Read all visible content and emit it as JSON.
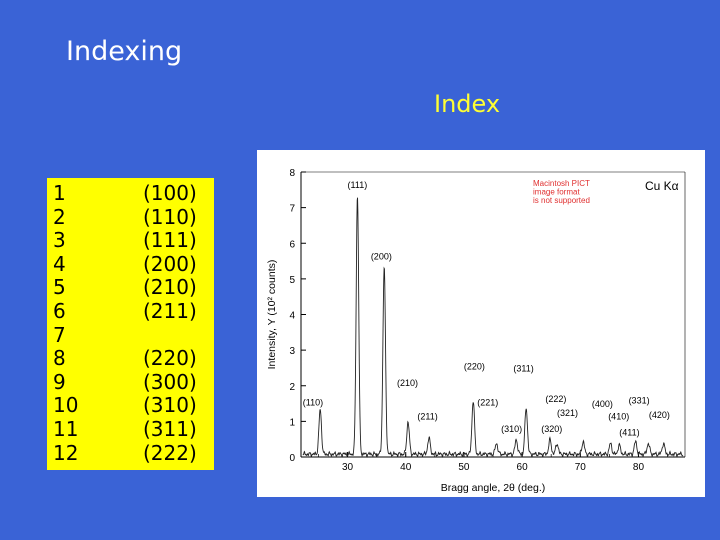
{
  "slide": {
    "title": "Indexing",
    "subtitle": "Index"
  },
  "index_table": {
    "rows": [
      {
        "n": "1",
        "hkl": "(100)"
      },
      {
        "n": "2",
        "hkl": "(110)"
      },
      {
        "n": "3",
        "hkl": "(111)"
      },
      {
        "n": "4",
        "hkl": "(200)"
      },
      {
        "n": "5",
        "hkl": "(210)"
      },
      {
        "n": "6",
        "hkl": "(211)"
      },
      {
        "n": "7",
        "hkl": ""
      },
      {
        "n": "8",
        "hkl": "(220)"
      },
      {
        "n": "9",
        "hkl": "(300)"
      },
      {
        "n": "10",
        "hkl": "(310)"
      },
      {
        "n": "11",
        "hkl": "(311)"
      },
      {
        "n": "12",
        "hkl": "(222)"
      }
    ]
  },
  "colors": {
    "background": "#3a63d6",
    "title": "#ffffff",
    "subtitle": "#ffff33",
    "table_bg": "#ffff00",
    "pict_notice": "#e03030"
  },
  "chart_data": {
    "type": "line",
    "title": "",
    "xlabel": "Bragg angle, 2θ (deg.)",
    "ylabel": "Intensity, Y (10² counts)",
    "xlim": [
      22,
      88
    ],
    "ylim": [
      0,
      8
    ],
    "xticks": [
      30,
      40,
      50,
      60,
      70,
      80
    ],
    "yticks": [
      0,
      1,
      2,
      3,
      4,
      5,
      6,
      7,
      8
    ],
    "grid": false,
    "corner_label": "Cu Kα",
    "pict_notice": [
      "Macintosh PICT",
      "image format",
      "is not supported"
    ],
    "peaks": [
      {
        "x": 25.3,
        "y": 1.25
      },
      {
        "x": 31.7,
        "y": 7.25
      },
      {
        "x": 36.3,
        "y": 5.25
      },
      {
        "x": 40.4,
        "y": 0.9
      },
      {
        "x": 44.0,
        "y": 0.45
      },
      {
        "x": 51.6,
        "y": 1.5
      },
      {
        "x": 55.6,
        "y": 0.3
      },
      {
        "x": 59.0,
        "y": 0.4
      },
      {
        "x": 60.7,
        "y": 1.3
      },
      {
        "x": 64.8,
        "y": 0.4
      },
      {
        "x": 66.0,
        "y": 0.3
      },
      {
        "x": 70.5,
        "y": 0.35
      },
      {
        "x": 75.2,
        "y": 0.3
      },
      {
        "x": 76.7,
        "y": 0.25
      },
      {
        "x": 79.5,
        "y": 0.35
      },
      {
        "x": 81.7,
        "y": 0.3
      },
      {
        "x": 84.3,
        "y": 0.3
      }
    ],
    "annotations": [
      {
        "text": "(111)",
        "x": 30.0,
        "y": 7.55
      },
      {
        "text": "(200)",
        "x": 34.0,
        "y": 5.55
      },
      {
        "text": "(220)",
        "x": 50.0,
        "y": 2.45
      },
      {
        "text": "(311)",
        "x": 58.5,
        "y": 2.4
      },
      {
        "text": "(210)",
        "x": 38.5,
        "y": 2.0
      },
      {
        "text": "(110)",
        "x": 22.3,
        "y": 1.45
      },
      {
        "text": "(221)",
        "x": 52.3,
        "y": 1.45
      },
      {
        "text": "(222)",
        "x": 64.0,
        "y": 1.55
      },
      {
        "text": "(211)",
        "x": 42.0,
        "y": 1.05
      },
      {
        "text": "(310)",
        "x": 56.4,
        "y": 0.7
      },
      {
        "text": "(321)",
        "x": 66.0,
        "y": 1.15
      },
      {
        "text": "(320)",
        "x": 63.3,
        "y": 0.7
      },
      {
        "text": "(400)",
        "x": 72.0,
        "y": 1.4
      },
      {
        "text": "(331)",
        "x": 78.3,
        "y": 1.5
      },
      {
        "text": "(410)",
        "x": 74.8,
        "y": 1.05
      },
      {
        "text": "(420)",
        "x": 81.8,
        "y": 1.1
      },
      {
        "text": "(411)",
        "x": 76.7,
        "y": 0.6
      }
    ]
  }
}
